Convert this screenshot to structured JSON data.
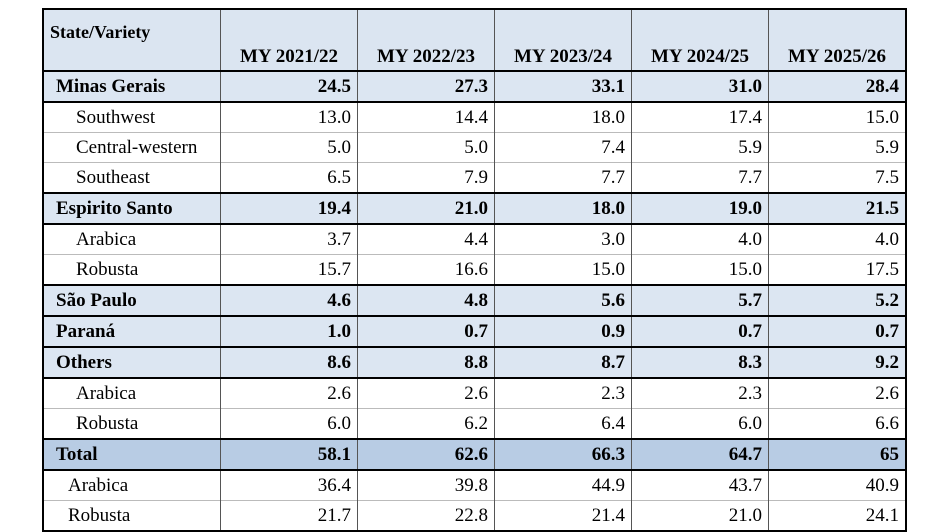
{
  "table": {
    "header": [
      "State/Variety",
      "MY 2021/22",
      "MY 2022/23",
      "MY 2023/24",
      "MY 2024/25",
      "MY 2025/26"
    ],
    "rows": [
      [
        "Minas Gerais",
        "24.5",
        "27.3",
        "33.1",
        "31.0",
        "28.4"
      ],
      [
        "Southwest",
        "13.0",
        "14.4",
        "18.0",
        "17.4",
        "15.0"
      ],
      [
        "Central-western",
        "5.0",
        "5.0",
        "7.4",
        "5.9",
        "5.9"
      ],
      [
        "Southeast",
        "6.5",
        "7.9",
        "7.7",
        "7.7",
        "7.5"
      ],
      [
        "Espirito Santo",
        "19.4",
        "21.0",
        "18.0",
        "19.0",
        "21.5"
      ],
      [
        "Arabica",
        "3.7",
        "4.4",
        "3.0",
        "4.0",
        "4.0"
      ],
      [
        "Robusta",
        "15.7",
        "16.6",
        "15.0",
        "15.0",
        "17.5"
      ],
      [
        "São Paulo",
        "4.6",
        "4.8",
        "5.6",
        "5.7",
        "5.2"
      ],
      [
        "Paraná",
        "1.0",
        "0.7",
        "0.9",
        "0.7",
        "0.7"
      ],
      [
        "Others",
        "8.6",
        "8.8",
        "8.7",
        "8.3",
        "9.2"
      ],
      [
        "Arabica",
        "2.6",
        "2.6",
        "2.3",
        "2.3",
        "2.6"
      ],
      [
        "Robusta",
        "6.0",
        "6.2",
        "6.4",
        "6.0",
        "6.6"
      ],
      [
        "Total",
        "58.1",
        "62.6",
        "66.3",
        "64.7",
        "65"
      ],
      [
        "Arabica",
        "36.4",
        "39.8",
        "44.9",
        "43.7",
        "40.9"
      ],
      [
        "Robusta",
        "21.7",
        "22.8",
        "21.4",
        "21.0",
        "24.1"
      ]
    ]
  }
}
